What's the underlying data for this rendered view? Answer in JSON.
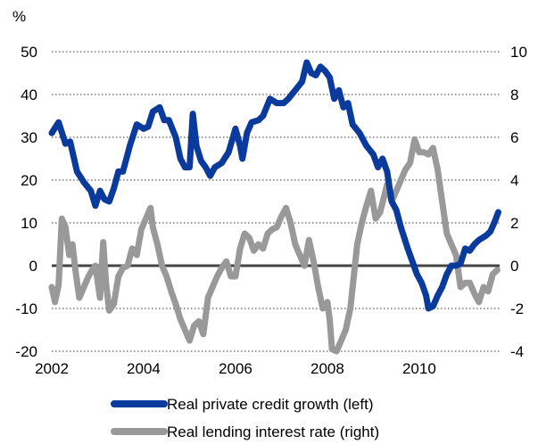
{
  "chart_data": {
    "type": "line",
    "title": "",
    "y_unit_label": "%",
    "x_ticks": [
      "2002",
      "2004",
      "2006",
      "2008",
      "2010"
    ],
    "x_range": [
      2002,
      2011.75
    ],
    "y_left": {
      "range": [
        -20,
        50
      ],
      "ticks": [
        "-20",
        "-10",
        "0",
        "10",
        "20",
        "30",
        "40",
        "50"
      ]
    },
    "y_right": {
      "range": [
        -4,
        10
      ],
      "ticks": [
        "-4",
        "-2",
        "0",
        "2",
        "4",
        "6",
        "8",
        "10"
      ]
    },
    "grid": "horizontal dotted",
    "zero_line": true,
    "legend_position": "bottom",
    "series": [
      {
        "name": "Real private credit growth (left)",
        "axis": "left",
        "color": "#0a3a9c",
        "points": [
          [
            2002.0,
            31.0
          ],
          [
            2002.15,
            33.5
          ],
          [
            2002.3,
            28.5
          ],
          [
            2002.4,
            29.0
          ],
          [
            2002.55,
            22.0
          ],
          [
            2002.7,
            19.5
          ],
          [
            2002.85,
            17.5
          ],
          [
            2002.95,
            14.0
          ],
          [
            2003.05,
            17.5
          ],
          [
            2003.15,
            15.5
          ],
          [
            2003.25,
            15.0
          ],
          [
            2003.35,
            18.0
          ],
          [
            2003.45,
            22.0
          ],
          [
            2003.55,
            22.0
          ],
          [
            2003.7,
            28.0
          ],
          [
            2003.85,
            33.0
          ],
          [
            2004.0,
            32.0
          ],
          [
            2004.1,
            32.5
          ],
          [
            2004.2,
            36.0
          ],
          [
            2004.35,
            37.0
          ],
          [
            2004.45,
            34.0
          ],
          [
            2004.55,
            34.0
          ],
          [
            2004.7,
            30.0
          ],
          [
            2004.8,
            25.0
          ],
          [
            2004.9,
            23.0
          ],
          [
            2005.0,
            23.0
          ],
          [
            2005.07,
            35.5
          ],
          [
            2005.15,
            28.0
          ],
          [
            2005.25,
            24.5
          ],
          [
            2005.35,
            23.0
          ],
          [
            2005.45,
            21.0
          ],
          [
            2005.55,
            23.0
          ],
          [
            2005.7,
            24.0
          ],
          [
            2005.85,
            26.5
          ],
          [
            2006.0,
            32.0
          ],
          [
            2006.1,
            28.0
          ],
          [
            2006.15,
            25.0
          ],
          [
            2006.25,
            31.0
          ],
          [
            2006.35,
            33.5
          ],
          [
            2006.5,
            34.0
          ],
          [
            2006.6,
            35.0
          ],
          [
            2006.75,
            39.0
          ],
          [
            2006.9,
            38.0
          ],
          [
            2007.05,
            38.0
          ],
          [
            2007.15,
            39.0
          ],
          [
            2007.3,
            41.0
          ],
          [
            2007.45,
            43.0
          ],
          [
            2007.55,
            47.5
          ],
          [
            2007.65,
            45.0
          ],
          [
            2007.75,
            44.5
          ],
          [
            2007.85,
            46.5
          ],
          [
            2007.95,
            45.5
          ],
          [
            2008.05,
            44.0
          ],
          [
            2008.15,
            39.0
          ],
          [
            2008.25,
            41.0
          ],
          [
            2008.35,
            37.0
          ],
          [
            2008.45,
            38.0
          ],
          [
            2008.55,
            33.0
          ],
          [
            2008.7,
            31.0
          ],
          [
            2008.85,
            28.0
          ],
          [
            2009.0,
            26.0
          ],
          [
            2009.1,
            23.0
          ],
          [
            2009.2,
            25.0
          ],
          [
            2009.3,
            22.0
          ],
          [
            2009.4,
            15.0
          ],
          [
            2009.5,
            13.0
          ],
          [
            2009.6,
            9.0
          ],
          [
            2009.75,
            4.0
          ],
          [
            2009.85,
            1.0
          ],
          [
            2009.95,
            -2.0
          ],
          [
            2010.05,
            -4.0
          ],
          [
            2010.15,
            -7.0
          ],
          [
            2010.2,
            -10.0
          ],
          [
            2010.3,
            -9.5
          ],
          [
            2010.4,
            -7.0
          ],
          [
            2010.5,
            -5.0
          ],
          [
            2010.6,
            -2.0
          ],
          [
            2010.7,
            0.0
          ],
          [
            2010.8,
            0.0
          ],
          [
            2010.9,
            0.5
          ],
          [
            2011.0,
            4.0
          ],
          [
            2011.1,
            3.5
          ],
          [
            2011.2,
            5.0
          ],
          [
            2011.3,
            6.0
          ],
          [
            2011.45,
            7.0
          ],
          [
            2011.55,
            8.0
          ],
          [
            2011.65,
            10.5
          ],
          [
            2011.72,
            12.5
          ]
        ]
      },
      {
        "name": "Real lending interest rate (right)",
        "axis": "right",
        "color": "#999999",
        "points": [
          [
            2002.0,
            -1.0
          ],
          [
            2002.07,
            -1.7
          ],
          [
            2002.15,
            -0.9
          ],
          [
            2002.22,
            2.2
          ],
          [
            2002.3,
            1.8
          ],
          [
            2002.38,
            0.5
          ],
          [
            2002.45,
            1.0
          ],
          [
            2002.52,
            -0.3
          ],
          [
            2002.6,
            -1.5
          ],
          [
            2002.7,
            -1.0
          ],
          [
            2002.8,
            -0.5
          ],
          [
            2002.88,
            -0.2
          ],
          [
            2002.95,
            0.0
          ],
          [
            2003.05,
            -1.5
          ],
          [
            2003.12,
            1.1
          ],
          [
            2003.18,
            -0.8
          ],
          [
            2003.25,
            -2.1
          ],
          [
            2003.35,
            -1.8
          ],
          [
            2003.45,
            -0.5
          ],
          [
            2003.55,
            -0.1
          ],
          [
            2003.65,
            0.0
          ],
          [
            2003.75,
            0.8
          ],
          [
            2003.85,
            0.5
          ],
          [
            2003.95,
            1.7
          ],
          [
            2004.05,
            2.2
          ],
          [
            2004.15,
            2.7
          ],
          [
            2004.2,
            1.8
          ],
          [
            2004.3,
            1.0
          ],
          [
            2004.4,
            0.0
          ],
          [
            2004.5,
            -0.5
          ],
          [
            2004.6,
            -1.2
          ],
          [
            2004.7,
            -1.8
          ],
          [
            2004.8,
            -2.5
          ],
          [
            2004.9,
            -3.0
          ],
          [
            2005.0,
            -3.5
          ],
          [
            2005.1,
            -2.8
          ],
          [
            2005.2,
            -2.6
          ],
          [
            2005.3,
            -3.2
          ],
          [
            2005.4,
            -1.5
          ],
          [
            2005.5,
            -1.0
          ],
          [
            2005.6,
            -0.5
          ],
          [
            2005.7,
            -0.1
          ],
          [
            2005.8,
            0.2
          ],
          [
            2005.9,
            -0.5
          ],
          [
            2006.0,
            -0.5
          ],
          [
            2006.1,
            0.8
          ],
          [
            2006.2,
            1.5
          ],
          [
            2006.3,
            1.3
          ],
          [
            2006.4,
            0.7
          ],
          [
            2006.5,
            1.0
          ],
          [
            2006.6,
            0.8
          ],
          [
            2006.7,
            1.5
          ],
          [
            2006.8,
            1.7
          ],
          [
            2006.9,
            1.8
          ],
          [
            2007.0,
            2.3
          ],
          [
            2007.1,
            2.7
          ],
          [
            2007.2,
            2.0
          ],
          [
            2007.3,
            1.0
          ],
          [
            2007.4,
            0.5
          ],
          [
            2007.5,
            0.0
          ],
          [
            2007.6,
            1.2
          ],
          [
            2007.7,
            0.2
          ],
          [
            2007.8,
            -1.0
          ],
          [
            2007.9,
            -2.0
          ],
          [
            2008.0,
            -1.7
          ],
          [
            2008.05,
            -2.5
          ],
          [
            2008.1,
            -3.9
          ],
          [
            2008.2,
            -4.0
          ],
          [
            2008.3,
            -3.5
          ],
          [
            2008.4,
            -3.0
          ],
          [
            2008.5,
            -2.0
          ],
          [
            2008.6,
            0.0
          ],
          [
            2008.65,
            1.0
          ],
          [
            2008.75,
            2.0
          ],
          [
            2008.85,
            2.8
          ],
          [
            2008.95,
            3.5
          ],
          [
            2009.05,
            2.2
          ],
          [
            2009.15,
            2.5
          ],
          [
            2009.3,
            3.8
          ],
          [
            2009.4,
            3.0
          ],
          [
            2009.5,
            3.5
          ],
          [
            2009.6,
            4.0
          ],
          [
            2009.7,
            4.5
          ],
          [
            2009.8,
            4.8
          ],
          [
            2009.9,
            5.9
          ],
          [
            2010.0,
            5.3
          ],
          [
            2010.1,
            5.3
          ],
          [
            2010.2,
            5.2
          ],
          [
            2010.3,
            5.5
          ],
          [
            2010.4,
            4.5
          ],
          [
            2010.5,
            3.0
          ],
          [
            2010.6,
            1.5
          ],
          [
            2010.7,
            1.0
          ],
          [
            2010.8,
            0.5
          ],
          [
            2010.9,
            -1.0
          ],
          [
            2011.0,
            -0.8
          ],
          [
            2011.1,
            -0.8
          ],
          [
            2011.2,
            -1.3
          ],
          [
            2011.3,
            -1.7
          ],
          [
            2011.4,
            -1.0
          ],
          [
            2011.5,
            -1.2
          ],
          [
            2011.6,
            -0.4
          ],
          [
            2011.7,
            -0.2
          ]
        ]
      }
    ]
  }
}
